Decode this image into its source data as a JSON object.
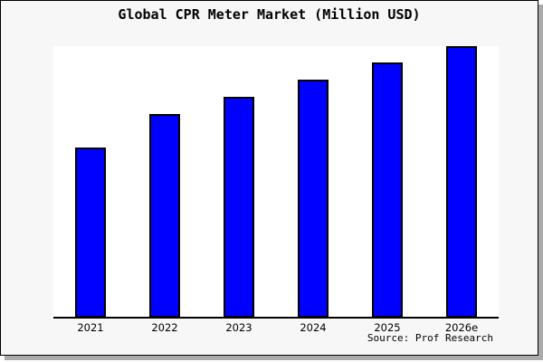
{
  "header": {
    "title": "Global CPR Meter Market (Million USD)"
  },
  "footer": {
    "source_credit": "Source: Prof Research"
  },
  "colors": {
    "bar_fill": "#0000ff",
    "bar_border": "#000000",
    "plot_background": "#ffffff",
    "panel_background": "#f7f7f7",
    "axis": "#000000",
    "text": "#000000"
  },
  "chart_data": {
    "type": "bar",
    "title": "Global CPR Meter Market (Million USD)",
    "categories": [
      "2021",
      "2022",
      "2023",
      "2024",
      "2025",
      "2026e"
    ],
    "values": [
      62.7,
      75.0,
      81.3,
      87.7,
      94.0,
      100.0
    ],
    "value_scale": "percent of tallest bar (2026e); chart shows no y-axis ticks, gridlines or data labels",
    "xlabel": "",
    "ylabel": "",
    "ylim": [
      0,
      100
    ],
    "grid": false,
    "legend": "none",
    "bar_outline": true
  }
}
